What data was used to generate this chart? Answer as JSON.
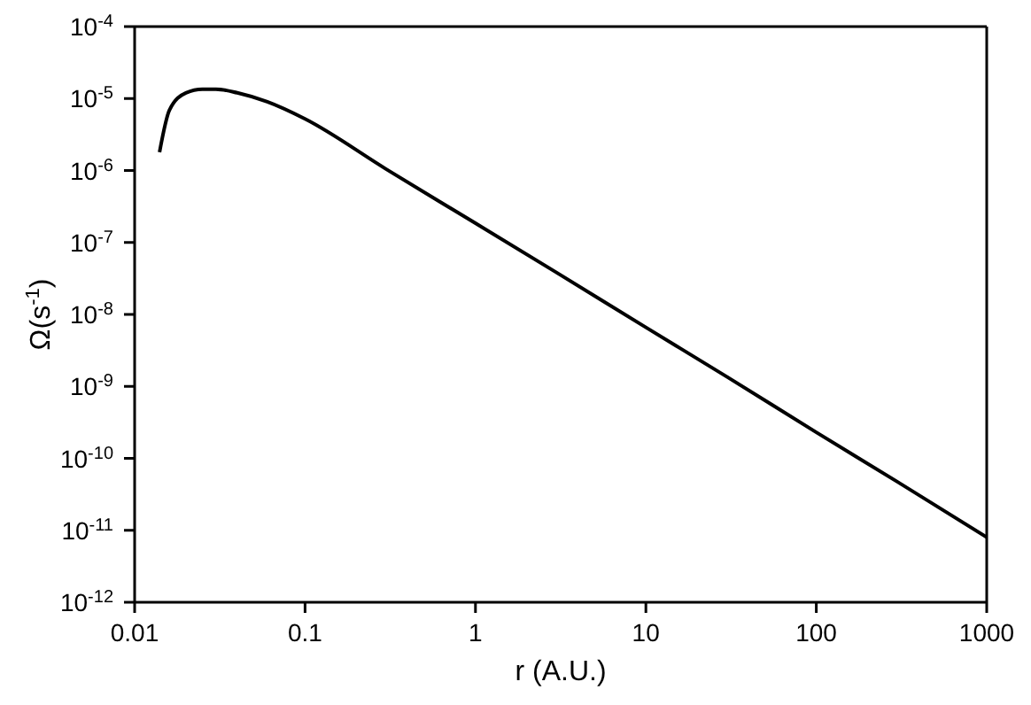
{
  "chart_data": {
    "type": "line",
    "xlabel": "r (A.U.)",
    "ylabel": "Ω(s$^{-1}$)",
    "log": "xy",
    "grid": false,
    "legend": false,
    "marker": "none",
    "line_style": "solid",
    "xlim": [
      0.01,
      1000
    ],
    "xticks": [
      0.01,
      0.1,
      1,
      10,
      100,
      1000
    ],
    "ylim": [
      1e-12,
      0.0001
    ],
    "yticks": [
      {
        "value": 1e-12,
        "label": "10$^{-12}$"
      },
      {
        "value": 1e-11,
        "label": "10$^{-11}$"
      },
      {
        "value": 1e-10,
        "label": "10$^{-10}$"
      },
      {
        "value": 1e-09,
        "label": "10$^{-9}$"
      },
      {
        "value": 1e-08,
        "label": "10$^{-8}$"
      },
      {
        "value": 1e-07,
        "label": "10$^{-7}$"
      },
      {
        "value": 1e-06,
        "label": "10$^{-6}$"
      },
      {
        "value": 1e-05,
        "label": "10$^{-5}$"
      },
      {
        "value": 0.0001,
        "label": "10$^{-4}$"
      }
    ],
    "series": [
      {
        "color": "#000000",
        "x": [
          0.014,
          0.016,
          0.02,
          0.025,
          0.03,
          0.04,
          0.06,
          0.1,
          0.3,
          1,
          3,
          10,
          30,
          100,
          300,
          1000
        ],
        "values": [
          1.8e-06,
          6.9e-06,
          1.2e-05,
          1.35e-05,
          1.35e-05,
          1.2e-05,
          9e-06,
          5.2e-06,
          1.04e-06,
          1.85e-07,
          3.8e-08,
          6.6e-09,
          1.35e-09,
          2.3e-10,
          4.7e-11,
          8e-12
        ]
      }
    ]
  }
}
